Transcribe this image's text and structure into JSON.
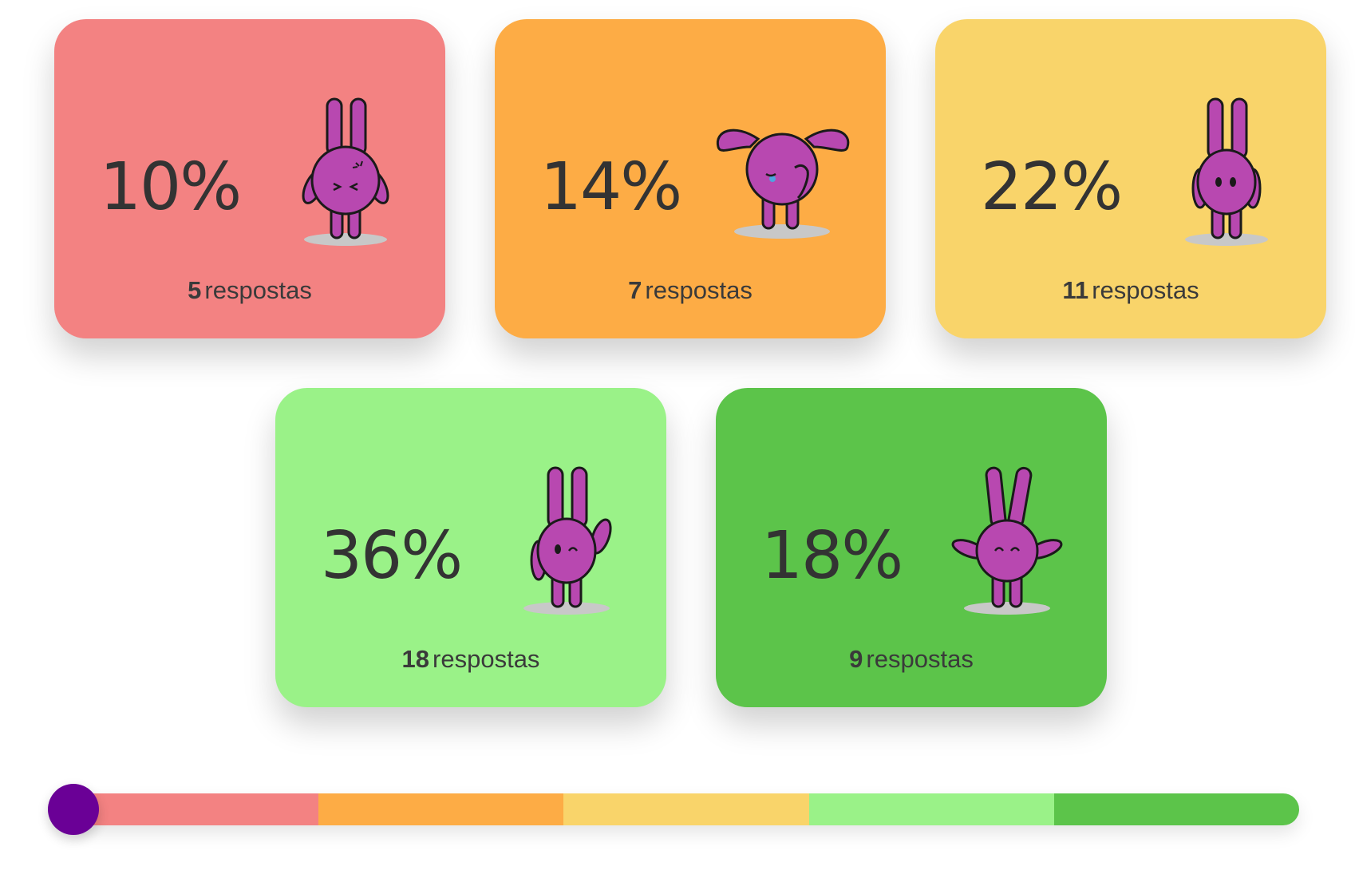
{
  "cards": [
    {
      "percent": "10%",
      "count": "5",
      "label": "respostas",
      "color": "#f38282",
      "mood": "angry-bunny-icon"
    },
    {
      "percent": "14%",
      "count": "7",
      "label": "respostas",
      "color": "#fdac45",
      "mood": "sad-bunny-icon"
    },
    {
      "percent": "22%",
      "count": "11",
      "label": "respostas",
      "color": "#f9d46a",
      "mood": "neutral-bunny-icon"
    },
    {
      "percent": "36%",
      "count": "18",
      "label": "respostas",
      "color": "#9af288",
      "mood": "wink-bunny-icon"
    },
    {
      "percent": "18%",
      "count": "9",
      "label": "respostas",
      "color": "#5cc44a",
      "mood": "happy-bunny-icon"
    }
  ],
  "scale": {
    "colors": [
      "#f38282",
      "#fdac45",
      "#f9d46a",
      "#9af288",
      "#5cc44a"
    ],
    "knob_color": "#6a0096",
    "knob_position": 0
  }
}
